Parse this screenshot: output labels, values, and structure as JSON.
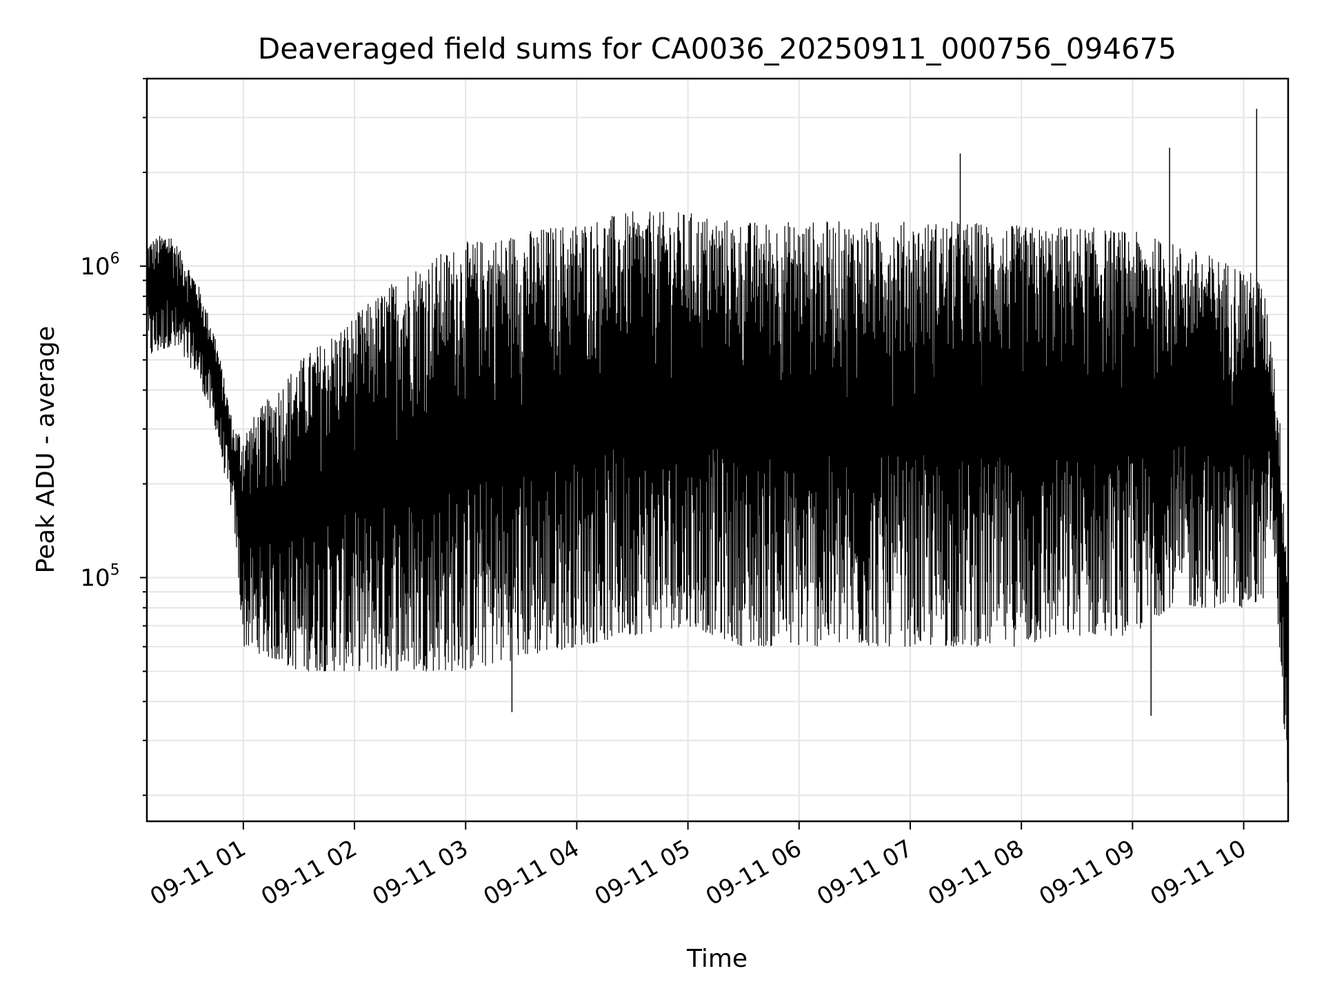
{
  "chart_data": {
    "type": "line",
    "title": "Deaveraged field sums for CA0036_20250911_000756_094675",
    "xlabel": "Time",
    "ylabel": "Peak ADU - average",
    "y_scale": "log",
    "ylim": [
      16500,
      4000000
    ],
    "xlim": [
      "2025-09-11 00:07:56",
      "2025-09-11 10:24:00"
    ],
    "grid": true,
    "line_color": "#000000",
    "grid_color": "#e5e5e5",
    "x_ticks": [
      "09-11 01",
      "09-11 02",
      "09-11 03",
      "09-11 04",
      "09-11 05",
      "09-11 06",
      "09-11 07",
      "09-11 08",
      "09-11 09",
      "09-11 10"
    ],
    "y_ticks": [
      {
        "base": "10",
        "exp": "5",
        "value": 100000
      },
      {
        "base": "10",
        "exp": "6",
        "value": 1000000
      }
    ],
    "envelope": {
      "time": [
        "2025-09-11 00:08",
        "2025-09-11 00:20",
        "2025-09-11 00:35",
        "2025-09-11 00:45",
        "2025-09-11 00:55",
        "2025-09-11 01:00",
        "2025-09-11 01:30",
        "2025-09-11 02:00",
        "2025-09-11 02:30",
        "2025-09-11 03:00",
        "2025-09-11 03:30",
        "2025-09-11 04:00",
        "2025-09-11 04:30",
        "2025-09-11 05:00",
        "2025-09-11 05:30",
        "2025-09-11 06:00",
        "2025-09-11 06:30",
        "2025-09-11 07:00",
        "2025-09-11 07:30",
        "2025-09-11 08:00",
        "2025-09-11 08:30",
        "2025-09-11 09:00",
        "2025-09-11 09:20",
        "2025-09-11 09:40",
        "2025-09-11 10:00",
        "2025-09-11 10:10",
        "2025-09-11 10:15",
        "2025-09-11 10:20",
        "2025-09-11 10:24"
      ],
      "upper": [
        1200000,
        1300000,
        900000,
        600000,
        300000,
        300000,
        500000,
        700000,
        1000000,
        1200000,
        1300000,
        1400000,
        1500000,
        1500000,
        1400000,
        1400000,
        1400000,
        1400000,
        1400000,
        1350000,
        1350000,
        1300000,
        1200000,
        1100000,
        1000000,
        900000,
        600000,
        300000,
        100000
      ],
      "lower": [
        500000,
        550000,
        450000,
        300000,
        150000,
        60000,
        50000,
        50000,
        50000,
        50000,
        55000,
        60000,
        65000,
        70000,
        60000,
        60000,
        60000,
        60000,
        60000,
        60000,
        65000,
        65000,
        80000,
        80000,
        80000,
        80000,
        150000,
        50000,
        20000
      ]
    },
    "spikes": [
      {
        "time": "2025-09-11 07:27",
        "value": 2300000
      },
      {
        "time": "2025-09-11 09:20",
        "value": 2400000
      },
      {
        "time": "2025-09-11 10:07",
        "value": 3200000
      },
      {
        "time": "2025-09-11 09:10",
        "value": 36000
      },
      {
        "time": "2025-09-11 03:25",
        "value": 37000
      }
    ]
  }
}
